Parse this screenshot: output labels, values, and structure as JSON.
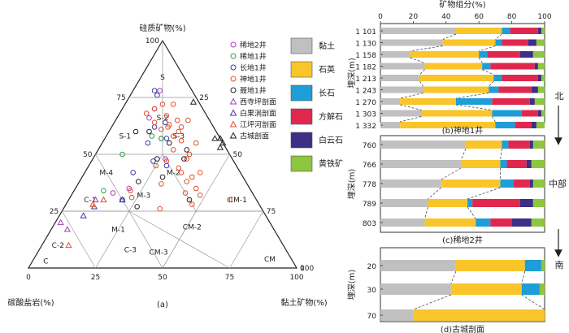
{
  "colors": {
    "clay": "#c0c0c0",
    "quartz": "#f9c52a",
    "feldspar": "#1e9ed8",
    "calcite": "#e0284f",
    "dolomite": "#3b2f86",
    "pyrite": "#8dc63f",
    "wells": [
      "#a63fb5",
      "#2f9e4a",
      "#3a3aa8",
      "#e2502b",
      "#222222",
      "#a63fb5",
      "#4a33a0",
      "#e2502b",
      "#222222"
    ]
  },
  "ternary": {
    "apex_top": "硅质矿物(%)",
    "apex_left": "碳酸盐岩(%)",
    "apex_right": "黏土矿物(%)",
    "caption": "(a)",
    "edge_ticks": [
      "25",
      "50",
      "75",
      "100"
    ],
    "zero_left": "0",
    "zero_right": "0",
    "zones": [
      "S",
      "S-1",
      "S-2",
      "S-3",
      "M-4",
      "M-2",
      "M-3",
      "M-1",
      "C-1",
      "C-2",
      "C-3",
      "C",
      "CM-1",
      "CM-2",
      "CM-3",
      "CM"
    ],
    "legend": [
      {
        "label": "稀地2井",
        "marker": "circle"
      },
      {
        "label": "稀地1井",
        "marker": "circle"
      },
      {
        "label": "长地1井",
        "marker": "circle"
      },
      {
        "label": "神地1井",
        "marker": "circle"
      },
      {
        "label": "聂地1井",
        "marker": "circle"
      },
      {
        "label": "西寺坪剖面",
        "marker": "triangle"
      },
      {
        "label": "白果涡剖面",
        "marker": "triangle"
      },
      {
        "label": "江坪河剖面",
        "marker": "triangle"
      },
      {
        "label": "古城剖面",
        "marker": "triangle"
      }
    ]
  },
  "mineral_legend": [
    "黏土",
    "石英",
    "长石",
    "方解石",
    "白云石",
    "黄铁矿"
  ],
  "chart_data": [
    {
      "type": "scatter",
      "subtype": "ternary",
      "axes": [
        "硅质矿物(%)",
        "碳酸盐岩(%)",
        "黏土矿物(%)"
      ],
      "series": [
        {
          "name": "稀地2井",
          "marker": "circle",
          "points": [
            [
              78,
              12,
              10
            ],
            [
              66,
              22,
              12
            ],
            [
              48,
              25,
              27
            ],
            [
              35,
              45,
              20
            ],
            [
              33,
              52,
              15
            ],
            [
              57,
              22,
              21
            ],
            [
              70,
              18,
              12
            ]
          ]
        },
        {
          "name": "稀地1井",
          "marker": "circle",
          "points": [
            [
              50,
              40,
              10
            ],
            [
              58,
              25,
              17
            ],
            [
              57,
              22,
              21
            ],
            [
              34,
              55,
              11
            ]
          ]
        },
        {
          "name": "长地1井",
          "marker": "circle",
          "points": [
            [
              78,
              14,
              8
            ],
            [
              76,
              14,
              10
            ],
            [
              62,
              22,
              16
            ],
            [
              64,
              17,
              19
            ],
            [
              57,
              20,
              23
            ],
            [
              47,
              30,
              23
            ],
            [
              45,
              26,
              29
            ],
            [
              55,
              28,
              17
            ],
            [
              42,
              40,
              18
            ],
            [
              30,
              50,
              20
            ]
          ]
        },
        {
          "name": "神地1井",
          "marker": "circle",
          "points": [
            [
              72,
              14,
              14
            ],
            [
              72,
              10,
              18
            ],
            [
              70,
              18,
              12
            ],
            [
              68,
              22,
              10
            ],
            [
              67,
              15,
              18
            ],
            [
              65,
              12,
              23
            ],
            [
              65,
              8,
              27
            ],
            [
              64,
              21,
              15
            ],
            [
              63,
              16,
              21
            ],
            [
              62,
              17,
              21
            ],
            [
              62,
              12,
              26
            ],
            [
              61,
              20,
              19
            ],
            [
              60,
              14,
              26
            ],
            [
              58,
              17,
              25
            ],
            [
              56,
              15,
              29
            ],
            [
              55,
              10,
              35
            ],
            [
              52,
              20,
              28
            ],
            [
              50,
              15,
              35
            ],
            [
              48,
              17,
              35
            ],
            [
              47,
              25,
              28
            ],
            [
              45,
              30,
              25
            ],
            [
              44,
              22,
              34
            ],
            [
              42,
              22,
              36
            ],
            [
              42,
              15,
              43
            ],
            [
              40,
              19,
              41
            ],
            [
              38,
              22,
              40
            ],
            [
              37,
              32,
              31
            ],
            [
              35,
              20,
              45
            ],
            [
              34,
              45,
              21
            ],
            [
              33,
              25,
              42
            ],
            [
              32,
              20,
              48
            ],
            [
              31,
              46,
              23
            ],
            [
              30,
              10,
              60
            ],
            [
              28,
              25,
              47
            ],
            [
              26,
              38,
              36
            ]
          ]
        },
        {
          "name": "聂地1井",
          "marker": "circle",
          "points": [
            [
              60,
              30,
              10
            ],
            [
              60,
              25,
              15
            ],
            [
              55,
              20,
              25
            ],
            [
              52,
              15,
              33
            ],
            [
              48,
              18,
              34
            ],
            [
              48,
              28,
              24
            ],
            [
              40,
              30,
              30
            ],
            [
              38,
              40,
              22
            ],
            [
              30,
              25,
              45
            ],
            [
              27,
              46,
              27
            ]
          ]
        },
        {
          "name": "西寺坪剖面",
          "marker": "triangle",
          "points": [
            [
              30,
              60,
              10
            ],
            [
              20,
              78,
              2
            ],
            [
              17,
              77,
              6
            ]
          ]
        },
        {
          "name": "白果涡剖面",
          "marker": "triangle",
          "points": [
            [
              27,
              62,
              11
            ],
            [
              23,
              68,
              9
            ],
            [
              30,
              50,
              20
            ]
          ]
        },
        {
          "name": "江坪河剖面",
          "marker": "triangle",
          "points": [
            [
              30,
              57,
              13
            ],
            [
              28,
              62,
              10
            ],
            [
              10,
              80,
              10
            ]
          ]
        },
        {
          "name": "古城剖面",
          "marker": "triangle",
          "points": [
            [
              73,
              2,
              25
            ],
            [
              57,
              0,
              43
            ],
            [
              57,
              2,
              41
            ],
            [
              55,
              0,
              45
            ],
            [
              53,
              2,
              45
            ]
          ]
        }
      ]
    },
    {
      "type": "bar",
      "stacked": true,
      "orientation": "horizontal",
      "title": "(b)神地1井",
      "xlabel": "矿物组分(%)",
      "ylabel": "埋深(m)",
      "xlim": [
        0,
        100
      ],
      "xticks": [
        0,
        20,
        40,
        60,
        80,
        100
      ],
      "categories": [
        "1 101",
        "1 130",
        "1 158",
        "1 182",
        "1 213",
        "1 243",
        "1 270",
        "1 303",
        "1 332"
      ],
      "series": [
        {
          "name": "黏土",
          "values": [
            46,
            38,
            18,
            27,
            24,
            26,
            12,
            25,
            12
          ]
        },
        {
          "name": "石英",
          "values": [
            28,
            32,
            42,
            35,
            45,
            40,
            34,
            43,
            58
          ]
        },
        {
          "name": "长石",
          "values": [
            5,
            4,
            5,
            5,
            5,
            6,
            22,
            18,
            12
          ]
        },
        {
          "name": "方解石",
          "values": [
            17,
            16,
            20,
            27,
            22,
            20,
            23,
            10,
            10
          ]
        },
        {
          "name": "白云石",
          "values": [
            2,
            5,
            8,
            2,
            2,
            4,
            3,
            2,
            3
          ]
        },
        {
          "name": "黄铁矿",
          "values": [
            2,
            5,
            7,
            4,
            2,
            4,
            6,
            2,
            5
          ]
        }
      ]
    },
    {
      "type": "bar",
      "stacked": true,
      "orientation": "horizontal",
      "title": "(c)稀地2井",
      "ylabel": "埋深(m)",
      "xlim": [
        0,
        100
      ],
      "categories": [
        "760",
        "766",
        "778",
        "789",
        "803"
      ],
      "series": [
        {
          "name": "黏土",
          "values": [
            52,
            49,
            37,
            29,
            27
          ]
        },
        {
          "name": "石英",
          "values": [
            22,
            24,
            36,
            24,
            31
          ]
        },
        {
          "name": "长石",
          "values": [
            4,
            4,
            8,
            3,
            9
          ]
        },
        {
          "name": "方解石",
          "values": [
            13,
            12,
            10,
            29,
            13
          ]
        },
        {
          "name": "白云石",
          "values": [
            2,
            3,
            2,
            8,
            12
          ]
        },
        {
          "name": "黄铁矿",
          "values": [
            7,
            8,
            7,
            7,
            8
          ]
        }
      ]
    },
    {
      "type": "bar",
      "stacked": true,
      "orientation": "horizontal",
      "title": "(d)古城剖面",
      "ylabel": "埋深(m)",
      "xlim": [
        0,
        100
      ],
      "categories": [
        "20",
        "30",
        "70"
      ],
      "series": [
        {
          "name": "黏土",
          "values": [
            46,
            43,
            20
          ]
        },
        {
          "name": "石英",
          "values": [
            42,
            43,
            80
          ]
        },
        {
          "name": "长石",
          "values": [
            10,
            11,
            0
          ]
        },
        {
          "name": "方解石",
          "values": [
            0,
            0,
            0
          ]
        },
        {
          "name": "白云石",
          "values": [
            0,
            0,
            0
          ]
        },
        {
          "name": "黄铁矿",
          "values": [
            2,
            3,
            0
          ]
        }
      ]
    }
  ],
  "annotations": {
    "north": "北",
    "middle": "中部",
    "south": "南"
  }
}
